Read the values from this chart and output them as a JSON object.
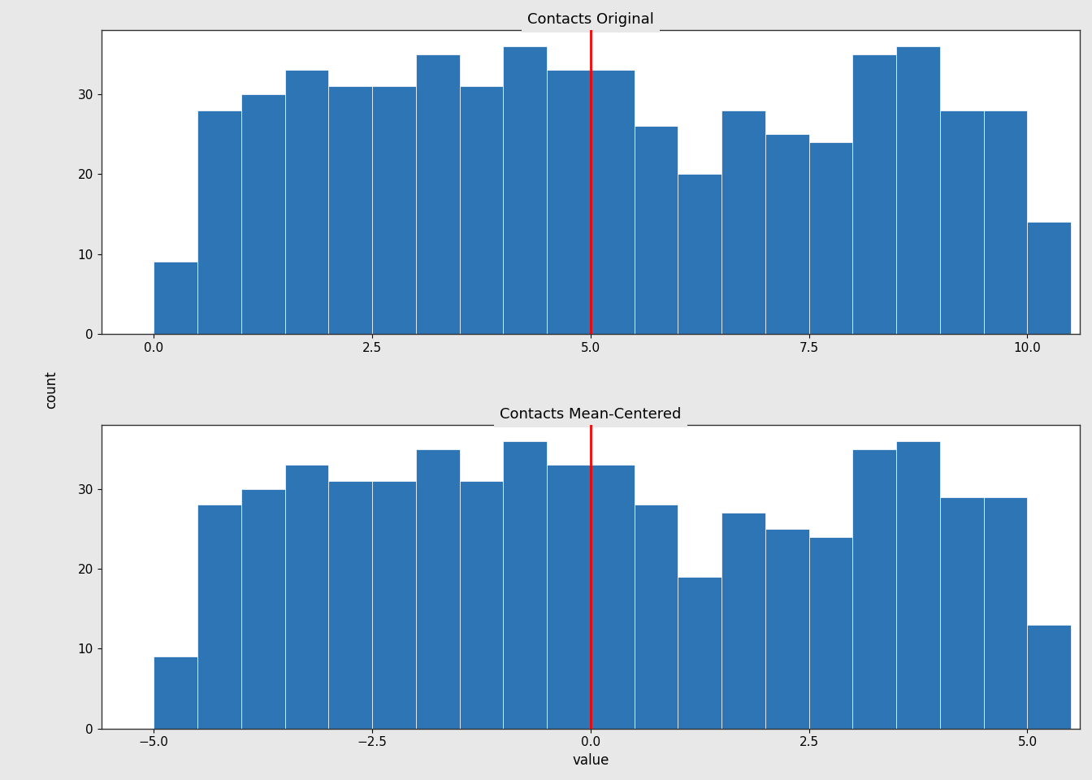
{
  "title1": "Contacts Original",
  "title2": "Contacts Mean-Centered",
  "xlabel": "value",
  "ylabel": "count",
  "mean1": 5.0,
  "mean2": 0.0,
  "bar_color": "#2e75b6",
  "mean_line_color": "red",
  "background_color": "#e8e8e8",
  "plot_bg_color": "#ffffff",
  "bin_edges1": [
    -0.5,
    0.0,
    0.5,
    1.0,
    1.5,
    2.0,
    2.5,
    3.0,
    3.5,
    4.0,
    4.5,
    5.0,
    5.5,
    6.0,
    6.5,
    7.0,
    7.5,
    8.0,
    8.5,
    9.0,
    9.5,
    10.0,
    10.5
  ],
  "bin_heights1": [
    0,
    9,
    28,
    30,
    33,
    31,
    31,
    35,
    31,
    36,
    33,
    33,
    26,
    20,
    28,
    25,
    24,
    35,
    36,
    28,
    28,
    14
  ],
  "bin_edges2": [
    -5.5,
    -5.0,
    -4.5,
    -4.0,
    -3.5,
    -3.0,
    -2.5,
    -2.0,
    -1.5,
    -1.0,
    -0.5,
    0.0,
    0.5,
    1.0,
    1.5,
    2.0,
    2.5,
    3.0,
    3.5,
    4.0,
    4.5,
    5.0,
    5.5
  ],
  "bin_heights2": [
    0,
    9,
    28,
    30,
    33,
    31,
    31,
    35,
    31,
    36,
    33,
    33,
    28,
    19,
    27,
    25,
    24,
    35,
    36,
    29,
    29,
    13
  ],
  "xlim1": [
    -0.6,
    10.6
  ],
  "xlim2": [
    -5.6,
    5.6
  ],
  "ylim": [
    0,
    38
  ],
  "yticks": [
    0,
    10,
    20,
    30
  ],
  "xticks1": [
    0.0,
    2.5,
    5.0,
    7.5,
    10.0
  ],
  "xticks2": [
    -5.0,
    -2.5,
    0.0,
    2.5,
    5.0
  ],
  "grid_color": "#ffffff",
  "title_fontsize": 13,
  "axis_fontsize": 12,
  "tick_fontsize": 11
}
